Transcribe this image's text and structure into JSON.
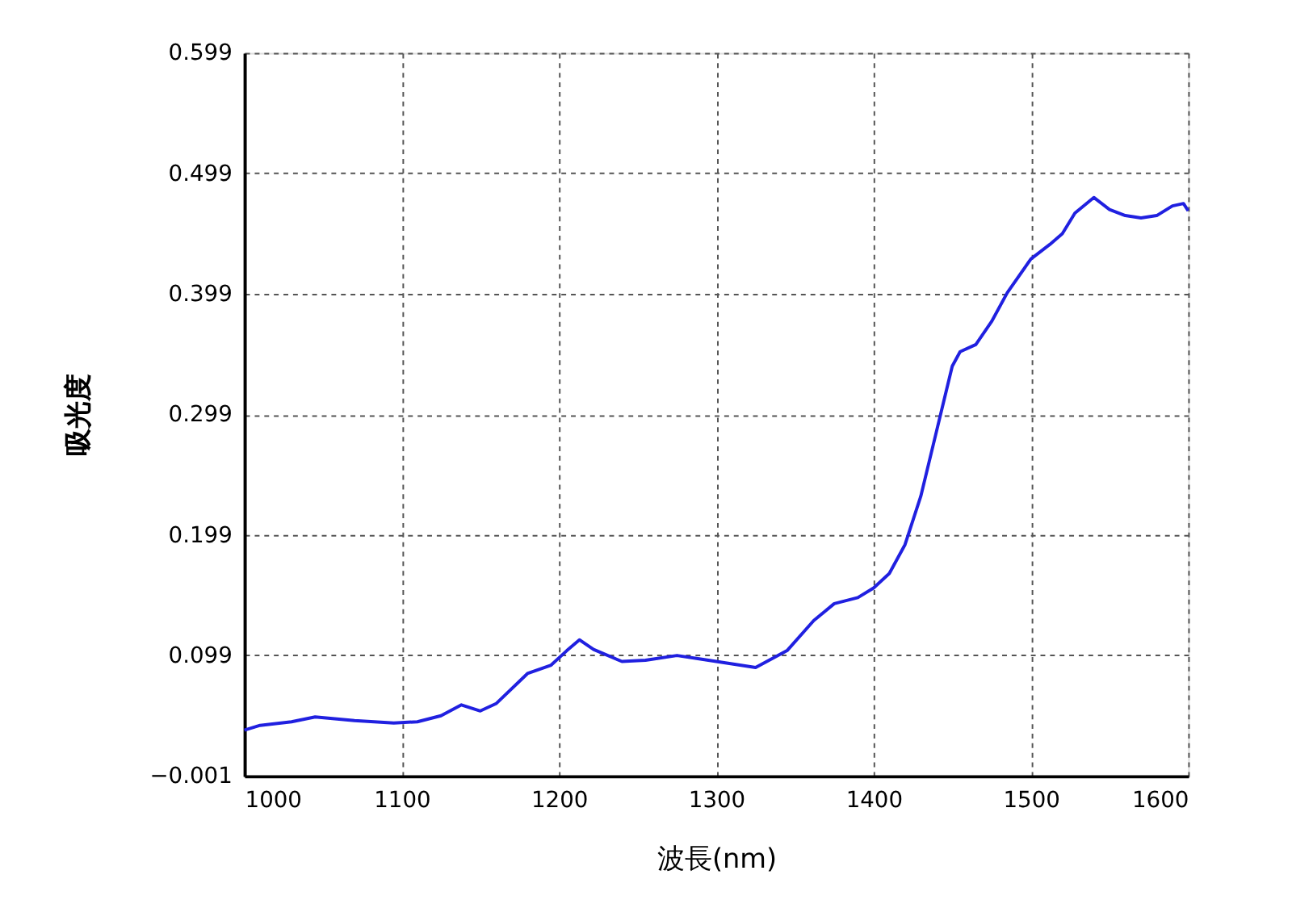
{
  "chart_data": {
    "type": "line",
    "xlabel": "波長(nm)",
    "ylabel": "吸光度",
    "x": [
      1000,
      1010,
      1030,
      1045,
      1070,
      1095,
      1110,
      1125,
      1138,
      1150,
      1160,
      1180,
      1195,
      1205,
      1213,
      1222,
      1240,
      1255,
      1275,
      1290,
      1305,
      1325,
      1345,
      1362,
      1375,
      1390,
      1400,
      1410,
      1420,
      1430,
      1440,
      1450,
      1455,
      1465,
      1475,
      1485,
      1500,
      1512,
      1520,
      1528,
      1540,
      1550,
      1560,
      1570,
      1580,
      1590,
      1597,
      1600
    ],
    "series": [
      {
        "color": "#2020e0",
        "values": [
          0.037,
          0.041,
          0.044,
          0.048,
          0.045,
          0.043,
          0.044,
          0.049,
          0.058,
          0.053,
          0.059,
          0.084,
          0.091,
          0.103,
          0.112,
          0.104,
          0.094,
          0.095,
          0.099,
          0.096,
          0.093,
          0.089,
          0.103,
          0.128,
          0.142,
          0.147,
          0.155,
          0.167,
          0.191,
          0.231,
          0.285,
          0.339,
          0.351,
          0.357,
          0.376,
          0.4,
          0.428,
          0.44,
          0.449,
          0.466,
          0.479,
          0.469,
          0.464,
          0.462,
          0.464,
          0.472,
          0.474,
          0.468
        ]
      }
    ],
    "xlim": [
      1000,
      1600
    ],
    "xticks": [
      1000,
      1100,
      1200,
      1300,
      1400,
      1500,
      1600
    ],
    "ylim": [
      -0.001,
      0.599
    ],
    "yticks": [
      -0.001,
      0.099,
      0.199,
      0.299,
      0.399,
      0.499,
      0.599
    ],
    "grid": true,
    "line_style": "solid"
  }
}
